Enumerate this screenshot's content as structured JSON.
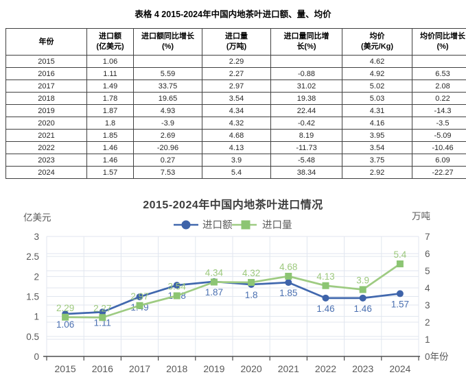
{
  "document": {
    "table_caption": "表格 4 2015-2024年中国内地茶叶进口额、量、均价"
  },
  "table": {
    "headers": [
      "年份",
      "进口额\n(亿美元)",
      "进口额同比增长\n(%)",
      "进口量\n(万吨)",
      "进口量同比增\n长(%)",
      "均价\n(美元/Kg)",
      "均价同比增长\n(%)"
    ],
    "rows": [
      [
        "2015",
        "1.06",
        "",
        "2.29",
        "",
        "4.62",
        ""
      ],
      [
        "2016",
        "1.11",
        "5.59",
        "2.27",
        "-0.88",
        "4.92",
        "6.53"
      ],
      [
        "2017",
        "1.49",
        "33.75",
        "2.97",
        "31.02",
        "5.02",
        "2.08"
      ],
      [
        "2018",
        "1.78",
        "19.65",
        "3.54",
        "19.38",
        "5.03",
        "0.22"
      ],
      [
        "2019",
        "1.87",
        "4.93",
        "4.34",
        "22.44",
        "4.31",
        "-14.3"
      ],
      [
        "2020",
        "1.8",
        "-3.9",
        "4.32",
        "-0.42",
        "4.16",
        "-3.5"
      ],
      [
        "2021",
        "1.85",
        "2.69",
        "4.68",
        "8.19",
        "3.95",
        "-5.09"
      ],
      [
        "2022",
        "1.46",
        "-20.96",
        "4.13",
        "-11.73",
        "3.54",
        "-10.46"
      ],
      [
        "2023",
        "1.46",
        "0.27",
        "3.9",
        "-5.48",
        "3.75",
        "6.09"
      ],
      [
        "2024",
        "1.57",
        "7.53",
        "5.4",
        "38.34",
        "2.92",
        "-22.27"
      ]
    ]
  },
  "chart_data": {
    "type": "line",
    "title": "2015-2024年中国内地茶叶进口情况",
    "categories": [
      "2015",
      "2016",
      "2017",
      "2018",
      "2019",
      "2020",
      "2021",
      "2022",
      "2023",
      "2024"
    ],
    "series": [
      {
        "name": "进口额",
        "axis": "left",
        "marker": "circle",
        "color": "#3e63a9",
        "line_color": "#4168ae",
        "label_color": "#4b70b1",
        "values": [
          1.06,
          1.11,
          1.49,
          1.78,
          1.87,
          1.8,
          1.85,
          1.46,
          1.46,
          1.57
        ]
      },
      {
        "name": "进口量",
        "axis": "right",
        "marker": "square",
        "color": "#8cc573",
        "line_color": "#9ecb82",
        "label_color": "#9cc87d",
        "values": [
          2.29,
          2.27,
          2.97,
          3.54,
          4.34,
          4.32,
          4.68,
          4.13,
          3.9,
          5.4
        ]
      }
    ],
    "left_axis": {
      "label": "亿美元",
      "min": 0,
      "max": 3,
      "step": 0.5,
      "ticks": [
        "0",
        "0.5",
        "1",
        "1.5",
        "2",
        "2.5",
        "3"
      ]
    },
    "right_axis": {
      "label": "万吨",
      "min": 0,
      "max": 7,
      "step": 1,
      "ticks": [
        "0",
        "1",
        "2",
        "3",
        "4",
        "5",
        "6",
        "7"
      ]
    },
    "x_axis_label": "年份",
    "grid": true,
    "data_labels": true,
    "legend_position": "top",
    "text_color": "#595959",
    "grid_color": "#e0e6ef",
    "axis_line_color": "#4d4d4d"
  }
}
